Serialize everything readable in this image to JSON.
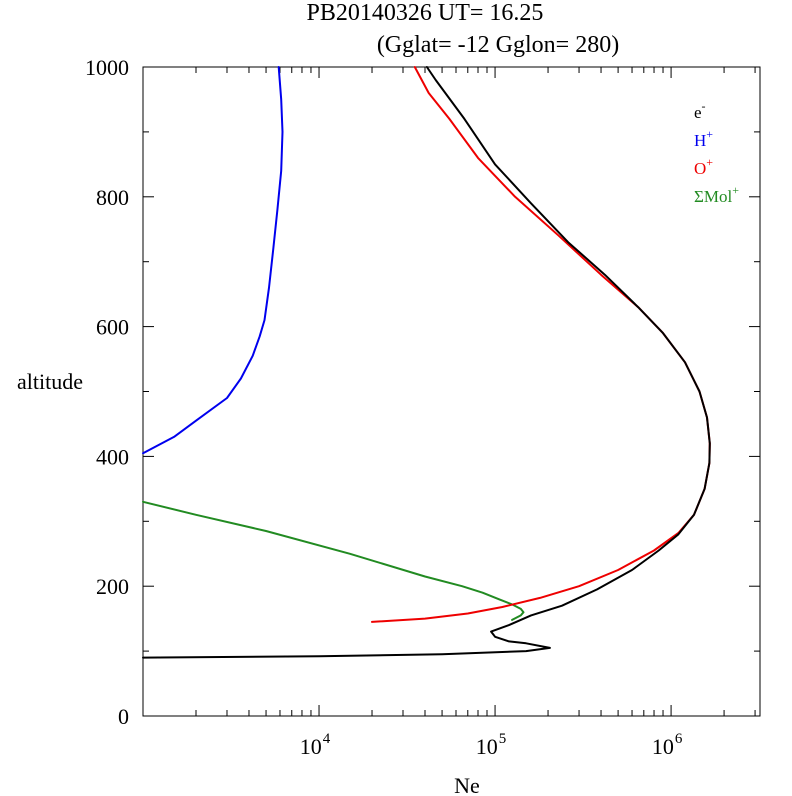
{
  "chart_data": {
    "type": "line",
    "title": "PB20140326   UT=  16.25",
    "subtitle": "(Gglat= -12   Gglon=  280)",
    "xlabel": "Ne",
    "ylabel": "altitude",
    "x_scale": "log",
    "xlim": [
      1000,
      3200000
    ],
    "ylim": [
      0,
      1000
    ],
    "x_tick_labels": [
      {
        "value": 10000,
        "base": "10",
        "exp": "4"
      },
      {
        "value": 100000,
        "base": "10",
        "exp": "5"
      },
      {
        "value": 1000000,
        "base": "10",
        "exp": "6"
      }
    ],
    "y_tick_labels": [
      {
        "value": 0,
        "label": "0"
      },
      {
        "value": 200,
        "label": "200"
      },
      {
        "value": 400,
        "label": "400"
      },
      {
        "value": 600,
        "label": "600"
      },
      {
        "value": 800,
        "label": "800"
      },
      {
        "value": 1000,
        "label": "1000"
      }
    ],
    "legend_position": "top-right",
    "series": [
      {
        "name": "e",
        "sup": "-",
        "color": "#000000",
        "points": [
          [
            1000,
            90
          ],
          [
            10000,
            92
          ],
          [
            50000,
            95
          ],
          [
            150000,
            100
          ],
          [
            205000,
            105
          ],
          [
            150000,
            112
          ],
          [
            120000,
            115
          ],
          [
            100000,
            122
          ],
          [
            95000,
            130
          ],
          [
            120000,
            140
          ],
          [
            160000,
            155
          ],
          [
            240000,
            170
          ],
          [
            380000,
            195
          ],
          [
            600000,
            225
          ],
          [
            850000,
            255
          ],
          [
            1100000,
            280
          ],
          [
            1350000,
            310
          ],
          [
            1550000,
            350
          ],
          [
            1650000,
            390
          ],
          [
            1660000,
            420
          ],
          [
            1600000,
            460
          ],
          [
            1450000,
            500
          ],
          [
            1200000,
            545
          ],
          [
            900000,
            590
          ],
          [
            650000,
            630
          ],
          [
            420000,
            680
          ],
          [
            260000,
            730
          ],
          [
            160000,
            790
          ],
          [
            100000,
            850
          ],
          [
            67000,
            920
          ],
          [
            46000,
            980
          ],
          [
            41000,
            1000
          ]
        ]
      },
      {
        "name": "H",
        "sup": "+",
        "color": "#0000ee",
        "points": [
          [
            1000,
            405
          ],
          [
            1500,
            430
          ],
          [
            2000,
            455
          ],
          [
            3000,
            490
          ],
          [
            3600,
            520
          ],
          [
            4200,
            555
          ],
          [
            4600,
            585
          ],
          [
            4900,
            610
          ],
          [
            5200,
            660
          ],
          [
            5500,
            720
          ],
          [
            5800,
            780
          ],
          [
            6100,
            840
          ],
          [
            6200,
            900
          ],
          [
            6100,
            950
          ],
          [
            5900,
            1000
          ]
        ]
      },
      {
        "name": "O",
        "sup": "+",
        "color": "#ee0000",
        "points": [
          [
            20000,
            145
          ],
          [
            40000,
            150
          ],
          [
            70000,
            158
          ],
          [
            110000,
            168
          ],
          [
            180000,
            182
          ],
          [
            300000,
            200
          ],
          [
            500000,
            225
          ],
          [
            800000,
            255
          ],
          [
            1100000,
            282
          ],
          [
            1350000,
            310
          ],
          [
            1550000,
            350
          ],
          [
            1650000,
            390
          ],
          [
            1660000,
            420
          ],
          [
            1600000,
            460
          ],
          [
            1450000,
            500
          ],
          [
            1200000,
            545
          ],
          [
            900000,
            590
          ],
          [
            650000,
            630
          ],
          [
            400000,
            680
          ],
          [
            230000,
            740
          ],
          [
            130000,
            800
          ],
          [
            80000,
            860
          ],
          [
            55000,
            920
          ],
          [
            42000,
            960
          ],
          [
            35000,
            1000
          ]
        ]
      },
      {
        "name": "ΣMol",
        "sup": "+",
        "color": "#228b22",
        "points": [
          [
            1000,
            330
          ],
          [
            2000,
            310
          ],
          [
            5000,
            285
          ],
          [
            15000,
            250
          ],
          [
            40000,
            215
          ],
          [
            65000,
            200
          ],
          [
            85000,
            190
          ],
          [
            105000,
            180
          ],
          [
            125000,
            172
          ],
          [
            140000,
            165
          ],
          [
            145000,
            160
          ],
          [
            140000,
            155
          ],
          [
            125000,
            148
          ]
        ]
      }
    ]
  }
}
